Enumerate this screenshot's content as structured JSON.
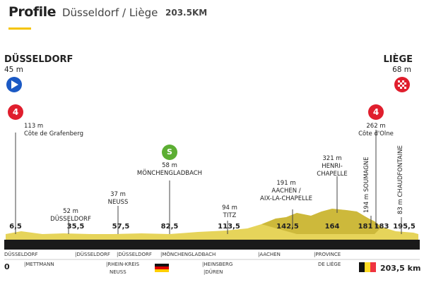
{
  "header": {
    "title": "Profile",
    "route": "Düsseldorf / Liège",
    "distance": "203.5KM",
    "accent_color": "#f5c400"
  },
  "start": {
    "name": "DÜSSELDORF",
    "altitude": "45 m",
    "icon": "start-arrow-icon"
  },
  "finish": {
    "name": "LIÈGE",
    "altitude": "68 m",
    "icon": "finish-flag-icon"
  },
  "climbs": [
    {
      "category": "4",
      "altitude": "113 m",
      "name": "Côte de Grafenberg"
    },
    {
      "category": "4",
      "altitude": "262 m",
      "name": "Côte d'Olne"
    }
  ],
  "sprint": {
    "badge": "S",
    "altitude": "58 m",
    "name": "MÖNCHENGLADBACH"
  },
  "points": [
    {
      "altitude": "52 m",
      "name": "DÜSSELDORF"
    },
    {
      "altitude": "37 m",
      "name": "NEUSS"
    },
    {
      "altitude": "94 m",
      "name": "TITZ"
    },
    {
      "altitude": "191 m",
      "name": "AACHEN /",
      "name2": "AIX-LA-CHAPELLE"
    },
    {
      "altitude": "321 m",
      "name": "HENRI-",
      "name2": "CHAPELLE"
    }
  ],
  "vertical_points": [
    {
      "text": "194 m SOUMAGNE"
    },
    {
      "text": "83 m CHAUDFONTAINE"
    }
  ],
  "km_markers": [
    "6,5",
    "35,5",
    "57,5",
    "82,5",
    "113,5",
    "142,5",
    "164",
    "181",
    "183",
    "195,5"
  ],
  "axis": {
    "start": "0",
    "end": "203,5 km"
  },
  "places": [
    "DÜSSELDORF",
    "|DÜSSELDORF",
    "|DÜSSELDORF",
    "|MÖNCHENGLADBACH",
    "|AACHEN",
    "|PROVINCE"
  ],
  "places_lower": [
    "|METTMANN",
    "|RHEIN-KREIS",
    "NEUSS",
    "|HEINSBERG",
    "|DÜREN",
    "DE LIÈGE"
  ],
  "colors": {
    "profile_fill": "#e6d45a",
    "profile_dark": "#b8a323",
    "axis_bar": "#1a1a1a",
    "climb_badge": "#e01e2d",
    "sprint_badge": "#5cae33",
    "start_badge": "#1b59c4"
  }
}
